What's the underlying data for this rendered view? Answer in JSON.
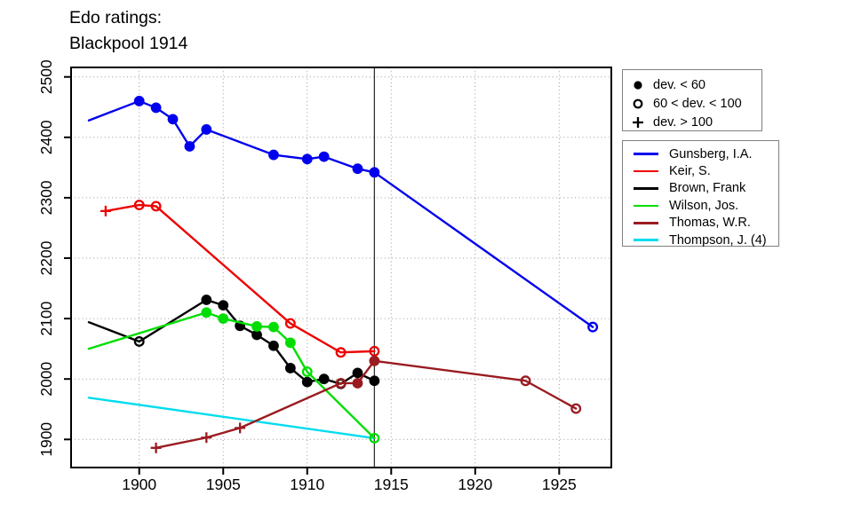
{
  "title": {
    "line1": "Edo ratings:",
    "line2": "Blackpool 1914"
  },
  "marker_legend": {
    "items": [
      {
        "marker": "filled-circle",
        "label": "dev. < 60"
      },
      {
        "marker": "open-circle",
        "label": "60 < dev. < 100"
      },
      {
        "marker": "plus",
        "label": "dev. > 100"
      }
    ]
  },
  "chart_data": {
    "type": "line",
    "title": "Edo ratings: Blackpool 1914",
    "xlabel": "",
    "ylabel": "",
    "xlim": [
      1896,
      1928.2
    ],
    "ylim": [
      1854,
      2516
    ],
    "x_ticks": [
      1900,
      1905,
      1910,
      1915,
      1920,
      1925
    ],
    "y_ticks": [
      1900,
      2000,
      2100,
      2200,
      2300,
      2400,
      2500
    ],
    "grid": "dotted",
    "event_line_x": 1914,
    "marker_meaning": {
      "filled": "dev. < 60",
      "open": "60 < dev. < 100",
      "plus": "dev. > 100"
    },
    "legend_position": "right",
    "series": [
      {
        "name": "Gunsberg, I.A.",
        "color": "#0000EE",
        "points": [
          {
            "year": 1897,
            "rating": 2428,
            "marker": "none"
          },
          {
            "year": 1900,
            "rating": 2460,
            "marker": "filled"
          },
          {
            "year": 1901,
            "rating": 2449,
            "marker": "filled"
          },
          {
            "year": 1902,
            "rating": 2430,
            "marker": "filled"
          },
          {
            "year": 1903,
            "rating": 2385,
            "marker": "filled"
          },
          {
            "year": 1904,
            "rating": 2413,
            "marker": "filled"
          },
          {
            "year": 1908,
            "rating": 2371,
            "marker": "filled"
          },
          {
            "year": 1910,
            "rating": 2364,
            "marker": "filled"
          },
          {
            "year": 1911,
            "rating": 2368,
            "marker": "filled"
          },
          {
            "year": 1913,
            "rating": 2348,
            "marker": "filled"
          },
          {
            "year": 1914,
            "rating": 2342,
            "marker": "filled"
          },
          {
            "year": 1927,
            "rating": 2086,
            "marker": "open"
          }
        ]
      },
      {
        "name": "Keir, S.",
        "color": "#EE0000",
        "points": [
          {
            "year": 1898,
            "rating": 2278,
            "marker": "plus"
          },
          {
            "year": 1900,
            "rating": 2288,
            "marker": "open"
          },
          {
            "year": 1901,
            "rating": 2286,
            "marker": "open"
          },
          {
            "year": 1909,
            "rating": 2092,
            "marker": "open"
          },
          {
            "year": 1912,
            "rating": 2044,
            "marker": "open"
          },
          {
            "year": 1914,
            "rating": 2046,
            "marker": "open"
          }
        ]
      },
      {
        "name": "Brown, Frank",
        "color": "#000000",
        "points": [
          {
            "year": 1897,
            "rating": 2094,
            "marker": "none"
          },
          {
            "year": 1900,
            "rating": 2062,
            "marker": "open"
          },
          {
            "year": 1904,
            "rating": 2131,
            "marker": "filled"
          },
          {
            "year": 1905,
            "rating": 2122,
            "marker": "filled"
          },
          {
            "year": 1906,
            "rating": 2088,
            "marker": "filled"
          },
          {
            "year": 1907,
            "rating": 2073,
            "marker": "filled"
          },
          {
            "year": 1908,
            "rating": 2055,
            "marker": "filled"
          },
          {
            "year": 1909,
            "rating": 2018,
            "marker": "filled"
          },
          {
            "year": 1910,
            "rating": 1995,
            "marker": "filled"
          },
          {
            "year": 1911,
            "rating": 2000,
            "marker": "filled"
          },
          {
            "year": 1912,
            "rating": 1992,
            "marker": "open"
          },
          {
            "year": 1913,
            "rating": 2010,
            "marker": "filled"
          },
          {
            "year": 1914,
            "rating": 1997,
            "marker": "filled"
          }
        ]
      },
      {
        "name": "Wilson, Jos.",
        "color": "#00DD00",
        "points": [
          {
            "year": 1897,
            "rating": 2050,
            "marker": "none"
          },
          {
            "year": 1904,
            "rating": 2110,
            "marker": "filled"
          },
          {
            "year": 1905,
            "rating": 2100,
            "marker": "filled"
          },
          {
            "year": 1907,
            "rating": 2087,
            "marker": "filled"
          },
          {
            "year": 1908,
            "rating": 2086,
            "marker": "filled"
          },
          {
            "year": 1909,
            "rating": 2060,
            "marker": "filled"
          },
          {
            "year": 1910,
            "rating": 2012,
            "marker": "open"
          },
          {
            "year": 1914,
            "rating": 1902,
            "marker": "open"
          }
        ]
      },
      {
        "name": "Thomas, W.R.",
        "color": "#9A1B20",
        "points": [
          {
            "year": 1901,
            "rating": 1886,
            "marker": "plus"
          },
          {
            "year": 1904,
            "rating": 1903,
            "marker": "plus"
          },
          {
            "year": 1906,
            "rating": 1919,
            "marker": "plus"
          },
          {
            "year": 1912,
            "rating": 1993,
            "marker": "open"
          },
          {
            "year": 1913,
            "rating": 1993,
            "marker": "filled"
          },
          {
            "year": 1914,
            "rating": 2030,
            "marker": "filled"
          },
          {
            "year": 1923,
            "rating": 1997,
            "marker": "open"
          },
          {
            "year": 1926,
            "rating": 1951,
            "marker": "open"
          }
        ]
      },
      {
        "name": "Thompson, J. (4)",
        "color": "#00DCEE",
        "points": [
          {
            "year": 1897,
            "rating": 1969,
            "marker": "none"
          },
          {
            "year": 1914,
            "rating": 1902,
            "marker": "none"
          }
        ]
      }
    ]
  }
}
